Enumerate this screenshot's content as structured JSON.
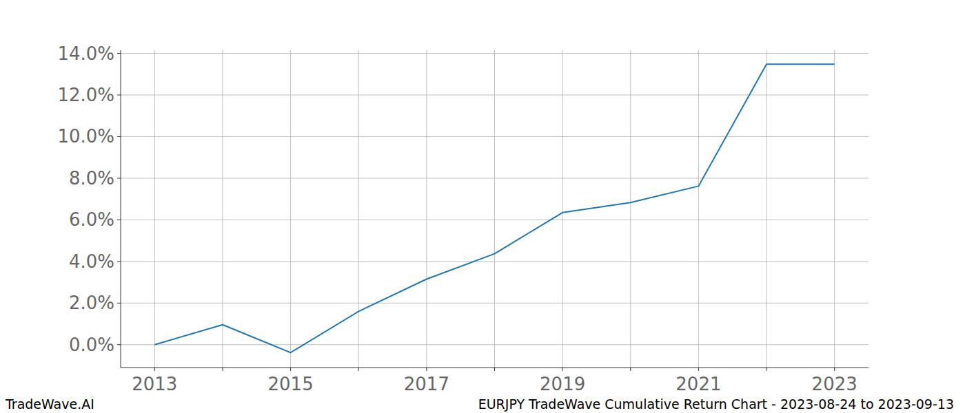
{
  "chart_data": {
    "type": "line",
    "title": "EURJPY TradeWave Cumulative Return Chart - 2023-08-24 to 2023-09-13",
    "annotations": [
      "TradeWave.AI"
    ],
    "categories": [
      "2013",
      null,
      "2015",
      null,
      "2017",
      null,
      "2019",
      null,
      "2021",
      null,
      "2023"
    ],
    "values": [
      0.0,
      0.96,
      -0.38,
      1.6,
      3.15,
      4.37,
      6.35,
      6.83,
      7.62,
      13.48,
      13.48
    ],
    "color": "#1f77b4",
    "ylim": [
      -1.1,
      14.15
    ],
    "yticks": [
      {
        "value": 0,
        "label": "0.0%"
      },
      {
        "value": 2,
        "label": "2.0%"
      },
      {
        "value": 4,
        "label": "4.0%"
      },
      {
        "value": 6,
        "label": "6.0%"
      },
      {
        "value": 8,
        "label": "8.0%"
      },
      {
        "value": 10,
        "label": "10.0%"
      },
      {
        "value": 12,
        "label": "12.0%"
      },
      {
        "value": 14,
        "label": "14.0%"
      }
    ],
    "grid": true
  }
}
